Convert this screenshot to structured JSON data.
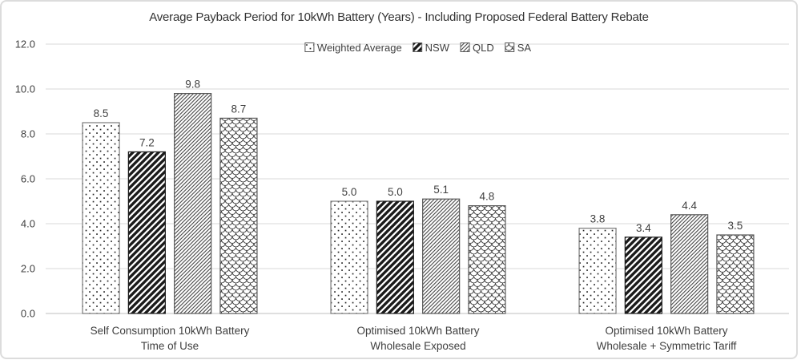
{
  "chart_data": {
    "type": "bar",
    "title": "Average Payback Period for 10kWh Battery (Years) - Including Proposed Federal Battery Rebate",
    "xlabel": "",
    "ylabel": "",
    "ylim": [
      0,
      12
    ],
    "grid": true,
    "legend_position": "top-center",
    "yticks": [
      {
        "value": 0,
        "label": "0.0"
      },
      {
        "value": 2,
        "label": "2.0"
      },
      {
        "value": 4,
        "label": "4.0"
      },
      {
        "value": 6,
        "label": "6.0"
      },
      {
        "value": 8,
        "label": "8.0"
      },
      {
        "value": 10,
        "label": "10.0"
      },
      {
        "value": 12,
        "label": "12.0"
      }
    ],
    "categories": [
      {
        "lines": [
          "Self Consumption 10kWh Battery",
          "Time of Use"
        ]
      },
      {
        "lines": [
          "Optimised 10kWh Battery",
          "Wholesale Exposed"
        ]
      },
      {
        "lines": [
          "Optimised 10kWh Battery",
          "Wholesale + Symmetric Tariff"
        ]
      }
    ],
    "series": [
      {
        "name": "Weighted Average",
        "key": "weighted-average",
        "pattern": "dots",
        "border_color": "#7a7a7a",
        "values": [
          8.5,
          5.0,
          3.8
        ]
      },
      {
        "name": "NSW",
        "key": "nsw",
        "pattern": "thick-diagonal",
        "border_color": "#1a1a1a",
        "values": [
          7.2,
          5.0,
          3.4
        ]
      },
      {
        "name": "QLD",
        "key": "qld",
        "pattern": "thin-diagonal",
        "border_color": "#595959",
        "values": [
          9.8,
          5.1,
          4.4
        ]
      },
      {
        "name": "SA",
        "key": "sa",
        "pattern": "scales",
        "border_color": "#595959",
        "values": [
          8.7,
          4.8,
          3.5
        ]
      }
    ],
    "value_labels_decimals": 1
  },
  "colors": {
    "gridline": "#d9d9d9",
    "axis_line": "#bfbfbf",
    "pattern_ink": "#1a1a1a",
    "text": "#404040",
    "value_label_text": "#262626",
    "background": "#ffffff"
  }
}
